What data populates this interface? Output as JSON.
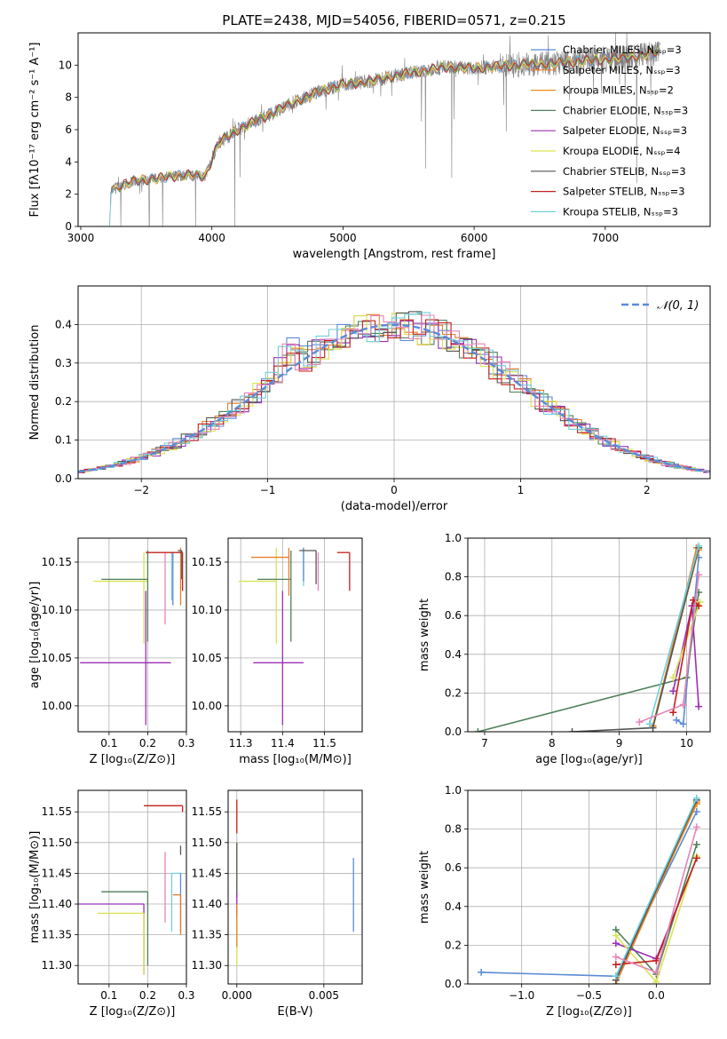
{
  "figure_title": "PLATE=2438, MJD=54056, FIBERID=0571, z=0.215",
  "colors": {
    "chabrier_miles": "#5b8bd6",
    "salpeter_miles": "#e87f2a",
    "kroupa_miles": "#ef8a1a",
    "chabrier_elodie": "#4f7f5a",
    "salpeter_elodie": "#9b2fb4",
    "kroupa_elodie": "#d9e352",
    "chabrier_stelib": "#555555",
    "salpeter_stelib": "#c4201c",
    "kroupa_stelib": "#6fd0dc",
    "pink": "#e685b8",
    "data_grey": "#808080"
  },
  "chart_data": [
    {
      "id": "spectrum",
      "type": "line",
      "title": "",
      "xlabel": "wavelength [Angstrom, rest frame]",
      "ylabel": "Flux [fλ10⁻¹⁷ erg cm⁻² s⁻¹ A⁻¹]",
      "xlim": [
        2980,
        7800
      ],
      "ylim": [
        0,
        12
      ],
      "xticks": [
        3000,
        4000,
        5000,
        6000,
        7000
      ],
      "yticks": [
        0,
        2,
        4,
        6,
        8,
        10
      ],
      "grid": false,
      "legend_loc": "top-right",
      "legend": [
        {
          "label": "Chabrier MILES, Nₛₛₚ=3",
          "color": "#5b8bd6"
        },
        {
          "label": "Salpeter MILES, Nₛₛₚ=3",
          "color": "#e87f2a"
        },
        {
          "label": "Kroupa MILES, Nₛₛₚ=2",
          "color": "#ef8a1a"
        },
        {
          "label": "Chabrier ELODIE, Nₛₛₚ=3",
          "color": "#4f7f5a"
        },
        {
          "label": "Salpeter ELODIE, Nₛₛₚ=3",
          "color": "#9b2fb4"
        },
        {
          "label": "Kroupa ELODIE, Nₛₛₚ=4",
          "color": "#d9e352"
        },
        {
          "label": "Chabrier STELIB, Nₛₛₚ=3",
          "color": "#555555"
        },
        {
          "label": "Salpeter STELIB, Nₛₛₚ=3",
          "color": "#c4201c"
        },
        {
          "label": "Kroupa STELIB, Nₛₛₚ=3",
          "color": "#6fd0dc"
        }
      ],
      "continuum": [
        [
          3220,
          0
        ],
        [
          3230,
          2.2
        ],
        [
          3300,
          2.5
        ],
        [
          3400,
          2.8
        ],
        [
          3600,
          3.0
        ],
        [
          3800,
          3.2
        ],
        [
          3950,
          3.1
        ],
        [
          4050,
          5.2
        ],
        [
          4200,
          6.0
        ],
        [
          4400,
          6.8
        ],
        [
          4600,
          7.6
        ],
        [
          4800,
          8.3
        ],
        [
          5000,
          8.8
        ],
        [
          5200,
          9.0
        ],
        [
          5500,
          9.5
        ],
        [
          5800,
          9.9
        ],
        [
          6000,
          9.8
        ],
        [
          6300,
          10.0
        ],
        [
          6600,
          10.1
        ],
        [
          6900,
          10.3
        ],
        [
          7200,
          10.5
        ],
        [
          7400,
          10.8
        ]
      ]
    },
    {
      "id": "residuals",
      "type": "histogram",
      "xlabel": "(data-model)/error",
      "ylabel": "Normed distribution",
      "xlim": [
        -2.5,
        2.5
      ],
      "ylim": [
        0,
        0.5
      ],
      "xticks": [
        -2,
        -1,
        0,
        1,
        2
      ],
      "yticks": [
        0.0,
        0.1,
        0.2,
        0.3,
        0.4
      ],
      "grid": true,
      "legend_loc": "top-right",
      "legend": [
        {
          "label": "𝒩(0, 1)",
          "color": "#5b8bd6",
          "style": "dashed"
        }
      ],
      "gaussian": {
        "mean": 0,
        "sigma": 1
      }
    },
    {
      "id": "age_vs_Z",
      "type": "errorbar",
      "xlabel": "Z [log₁₀(Z/Z⊙)]",
      "ylabel": "age  [log₁₀(age/yr)]",
      "xlim": [
        0.02,
        0.3
      ],
      "ylim": [
        9.973,
        10.175
      ],
      "xticks": [
        0.1,
        0.2,
        0.3
      ],
      "yticks": [
        10.0,
        10.05,
        10.1,
        10.15
      ],
      "grid": true,
      "points": [
        {
          "x": 0.195,
          "y": 10.045,
          "xerr": [
            0.17,
            0.065
          ],
          "yerr": [
            0.065,
            0.075
          ],
          "color": "#9b2fb4"
        },
        {
          "x": 0.19,
          "y": 10.13,
          "xerr": [
            0.13,
            0.01
          ],
          "yerr": [
            0.065,
            0.03
          ],
          "color": "#d9e352"
        },
        {
          "x": 0.2,
          "y": 10.132,
          "xerr": [
            0.12,
            0.0
          ],
          "yerr": [
            0.065,
            0.03
          ],
          "color": "#4f7f5a"
        },
        {
          "x": 0.245,
          "y": 10.13,
          "xerr": [
            0.0,
            0.0
          ],
          "yerr": [
            0.045,
            0.03
          ],
          "color": "#e685b8"
        },
        {
          "x": 0.262,
          "y": 10.14,
          "xerr": [
            0.0,
            0.0
          ],
          "yerr": [
            0.03,
            0.02
          ],
          "color": "#6fd0dc"
        },
        {
          "x": 0.265,
          "y": 10.14,
          "xerr": [
            0.0,
            0.0
          ],
          "yerr": [
            0.035,
            0.02
          ],
          "color": "#5b8bd6"
        },
        {
          "x": 0.285,
          "y": 10.16,
          "xerr": [
            0.0,
            0.005
          ],
          "yerr": [
            0.055,
            0.005
          ],
          "color": "#e87f2a"
        },
        {
          "x": 0.29,
          "y": 10.16,
          "xerr": [
            0.095,
            0.0
          ],
          "yerr": [
            0.04,
            0.0
          ],
          "color": "#c4201c"
        },
        {
          "x": 0.288,
          "y": 10.162,
          "xerr": [
            0.01,
            0.0
          ],
          "yerr": [
            0.03,
            0.0
          ],
          "color": "#555555"
        }
      ]
    },
    {
      "id": "age_vs_mass",
      "type": "errorbar",
      "xlabel": "mass [log₁₀(M/M⊙)]",
      "ylabel": "",
      "xlim": [
        11.27,
        11.59
      ],
      "ylim": [
        9.973,
        10.175
      ],
      "xticks": [
        11.3,
        11.4,
        11.5
      ],
      "yticks": [
        10.0,
        10.05,
        10.1,
        10.15
      ],
      "grid": true,
      "points": [
        {
          "x": 11.4,
          "y": 10.045,
          "xerr": [
            0.07,
            0.05
          ],
          "yerr": [
            0.065,
            0.075
          ],
          "color": "#9b2fb4"
        },
        {
          "x": 11.385,
          "y": 10.13,
          "xerr": [
            0.09,
            0.0
          ],
          "yerr": [
            0.065,
            0.035
          ],
          "color": "#d9e352"
        },
        {
          "x": 11.42,
          "y": 10.132,
          "xerr": [
            0.08,
            0.0
          ],
          "yerr": [
            0.065,
            0.03
          ],
          "color": "#4f7f5a"
        },
        {
          "x": 11.415,
          "y": 10.155,
          "xerr": [
            0.09,
            0.0
          ],
          "yerr": [
            0.04,
            0.01
          ],
          "color": "#e87f2a"
        },
        {
          "x": 11.45,
          "y": 10.155,
          "xerr": [
            0.0,
            0.0
          ],
          "yerr": [
            0.03,
            0.01
          ],
          "color": "#6fd0dc"
        },
        {
          "x": 11.45,
          "y": 10.155,
          "xerr": [
            0.0,
            0.0
          ],
          "yerr": [
            0.025,
            0.01
          ],
          "color": "#5b8bd6"
        },
        {
          "x": 11.485,
          "y": 10.13,
          "xerr": [
            0.0,
            0.0
          ],
          "yerr": [
            0.01,
            0.03
          ],
          "color": "#e685b8"
        },
        {
          "x": 11.48,
          "y": 10.162,
          "xerr": [
            0.04,
            0.0
          ],
          "yerr": [
            0.035,
            0.0
          ],
          "color": "#555555"
        },
        {
          "x": 11.56,
          "y": 10.16,
          "xerr": [
            0.03,
            0.0
          ],
          "yerr": [
            0.04,
            0.0
          ],
          "color": "#c4201c"
        }
      ]
    },
    {
      "id": "weight_vs_age",
      "type": "line",
      "xlabel": "age  [log₁₀(age/yr)]",
      "ylabel": "mass weight",
      "xlim": [
        6.75,
        10.35
      ],
      "ylim": [
        0,
        1
      ],
      "xticks": [
        7,
        8,
        9,
        10
      ],
      "yticks": [
        0.0,
        0.2,
        0.4,
        0.6,
        0.8,
        1.0
      ],
      "grid": true,
      "series": [
        {
          "color": "#5b8bd6",
          "x": [
            9.85,
            9.95,
            10.18
          ],
          "y": [
            0.06,
            0.04,
            0.9
          ]
        },
        {
          "color": "#e87f2a",
          "x": [
            9.5,
            10.15
          ],
          "y": [
            0.03,
            0.95
          ]
        },
        {
          "color": "#ef8a1a",
          "x": [
            9.5,
            10.18
          ],
          "y": [
            0.03,
            0.94
          ]
        },
        {
          "color": "#4f7f5a",
          "x": [
            6.9,
            10.0,
            10.18
          ],
          "y": [
            0.0,
            0.28,
            0.72
          ]
        },
        {
          "color": "#9b2fb4",
          "x": [
            9.8,
            10.08,
            10.18
          ],
          "y": [
            0.21,
            0.65,
            0.13
          ]
        },
        {
          "color": "#d9e352",
          "x": [
            9.8,
            10.2
          ],
          "y": [
            0.28,
            0.67
          ]
        },
        {
          "color": "#555555",
          "x": [
            8.3,
            9.5,
            10.18
          ],
          "y": [
            0.0,
            0.02,
            0.95
          ]
        },
        {
          "color": "#c4201c",
          "x": [
            9.8,
            10.1,
            10.18
          ],
          "y": [
            0.1,
            0.68,
            0.65
          ]
        },
        {
          "color": "#6fd0dc",
          "x": [
            9.45,
            10.18
          ],
          "y": [
            0.04,
            0.96
          ]
        },
        {
          "color": "#e685b8",
          "x": [
            9.3,
            9.95,
            10.18
          ],
          "y": [
            0.05,
            0.14,
            0.81
          ]
        }
      ]
    },
    {
      "id": "mass_vs_Z",
      "type": "errorbar",
      "xlabel": "Z [log₁₀(Z/Z⊙)]",
      "ylabel": "mass [log₁₀(M/M⊙)]",
      "xlim": [
        0.02,
        0.3
      ],
      "ylim": [
        11.27,
        11.585
      ],
      "xticks": [
        0.1,
        0.2,
        0.3
      ],
      "yticks": [
        11.3,
        11.35,
        11.4,
        11.45,
        11.5,
        11.55
      ],
      "grid": true,
      "points": [
        {
          "x": 0.19,
          "y": 11.4,
          "xerr": [
            0.17,
            0.0
          ],
          "yerr": [
            0.115,
            0.0
          ],
          "color": "#9b2fb4"
        },
        {
          "x": 0.19,
          "y": 11.385,
          "xerr": [
            0.12,
            0.0
          ],
          "yerr": [
            0.1,
            0.0
          ],
          "color": "#d9e352"
        },
        {
          "x": 0.2,
          "y": 11.42,
          "xerr": [
            0.12,
            0.0
          ],
          "yerr": [
            0.12,
            0.0
          ],
          "color": "#4f7f5a"
        },
        {
          "x": 0.245,
          "y": 11.42,
          "xerr": [
            0.0,
            0.0
          ],
          "yerr": [
            0.05,
            0.065
          ],
          "color": "#e685b8"
        },
        {
          "x": 0.262,
          "y": 11.45,
          "xerr": [
            0.0,
            0.025
          ],
          "yerr": [
            0.095,
            0.0
          ],
          "color": "#6fd0dc"
        },
        {
          "x": 0.285,
          "y": 11.45,
          "xerr": [
            0.0,
            0.0
          ],
          "yerr": [
            0.095,
            0.0
          ],
          "color": "#5b8bd6"
        },
        {
          "x": 0.285,
          "y": 11.415,
          "xerr": [
            0.02,
            0.0
          ],
          "yerr": [
            0.065,
            0.0
          ],
          "color": "#e87f2a"
        },
        {
          "x": 0.285,
          "y": 11.48,
          "xerr": [
            0.0,
            0.0
          ],
          "yerr": [
            0.0,
            0.015
          ],
          "color": "#555555"
        },
        {
          "x": 0.29,
          "y": 11.56,
          "xerr": [
            0.1,
            0.0
          ],
          "yerr": [
            0.01,
            0.0
          ],
          "color": "#c4201c"
        }
      ]
    },
    {
      "id": "mass_vs_ebv",
      "type": "errorbar",
      "xlabel": "E(B-V)",
      "ylabel": "",
      "xlim": [
        -0.0005,
        0.0072
      ],
      "ylim": [
        11.27,
        11.585
      ],
      "xticks": [
        0.0,
        0.005
      ],
      "yticks": [
        11.3,
        11.35,
        11.4,
        11.45,
        11.5,
        11.55
      ],
      "grid": true,
      "points": [
        {
          "x": 0.0,
          "y": 11.54,
          "xerr": [
            0,
            0
          ],
          "yerr": [
            0.025,
            0.03
          ],
          "color": "#c4201c"
        },
        {
          "x": 0.0,
          "y": 11.42,
          "xerr": [
            0,
            0
          ],
          "yerr": [
            0.12,
            0.08
          ],
          "color": "#d9e352"
        },
        {
          "x": 0.0,
          "y": 11.44,
          "xerr": [
            0,
            0
          ],
          "yerr": [
            0.03,
            0.06
          ],
          "color": "#555555"
        },
        {
          "x": 0.0,
          "y": 11.4,
          "xerr": [
            0,
            0
          ],
          "yerr": [
            0.02,
            0.02
          ],
          "color": "#9b2fb4"
        },
        {
          "x": 0.0,
          "y": 11.36,
          "xerr": [
            0,
            0
          ],
          "yerr": [
            0.03,
            0.04
          ],
          "color": "#e87f2a"
        },
        {
          "x": 0.0067,
          "y": 11.415,
          "xerr": [
            0,
            0
          ],
          "yerr": [
            0.06,
            0.06
          ],
          "color": "#5b8bd6"
        }
      ]
    },
    {
      "id": "weight_vs_Z",
      "type": "line",
      "xlabel": "Z [log₁₀(Z/Z⊙)]",
      "ylabel": "mass weight",
      "xlim": [
        -1.4,
        0.4
      ],
      "ylim": [
        0,
        1
      ],
      "xticks": [
        -1.0,
        -0.5,
        0.0
      ],
      "yticks": [
        0.0,
        0.2,
        0.4,
        0.6,
        0.8,
        1.0
      ],
      "grid": true,
      "series": [
        {
          "color": "#5b8bd6",
          "x": [
            -1.3,
            -0.3,
            0.3
          ],
          "y": [
            0.06,
            0.04,
            0.89
          ]
        },
        {
          "color": "#e87f2a",
          "x": [
            -0.3,
            0.3
          ],
          "y": [
            0.0,
            0.94
          ]
        },
        {
          "color": "#ef8a1a",
          "x": [
            -0.3,
            0.3
          ],
          "y": [
            0.02,
            0.93
          ]
        },
        {
          "color": "#4f7f5a",
          "x": [
            -0.3,
            0.0,
            0.3
          ],
          "y": [
            0.28,
            0.05,
            0.72
          ]
        },
        {
          "color": "#9b2fb4",
          "x": [
            -0.3,
            0.0,
            0.3
          ],
          "y": [
            0.21,
            0.13,
            0.65
          ]
        },
        {
          "color": "#d9e352",
          "x": [
            -0.3,
            0.0,
            0.3
          ],
          "y": [
            0.25,
            0.01,
            0.66
          ]
        },
        {
          "color": "#555555",
          "x": [
            -0.3,
            0.3
          ],
          "y": [
            0.02,
            0.95
          ]
        },
        {
          "color": "#c4201c",
          "x": [
            -0.3,
            0.0,
            0.3
          ],
          "y": [
            0.1,
            0.12,
            0.65
          ]
        },
        {
          "color": "#6fd0dc",
          "x": [
            -0.3,
            0.3
          ],
          "y": [
            0.04,
            0.96
          ]
        },
        {
          "color": "#e685b8",
          "x": [
            -0.3,
            0.0,
            0.3
          ],
          "y": [
            0.14,
            0.06,
            0.81
          ]
        }
      ]
    }
  ]
}
